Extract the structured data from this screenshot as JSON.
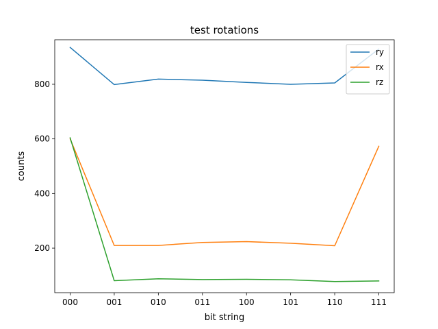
{
  "chart_data": {
    "type": "line",
    "title": "test rotations",
    "xlabel": "bit string",
    "ylabel": "counts",
    "categories": [
      "000",
      "001",
      "010",
      "011",
      "100",
      "101",
      "110",
      "111"
    ],
    "ylim": [
      37,
      963
    ],
    "yticks": [
      200,
      400,
      600,
      800
    ],
    "grid": false,
    "legend": "top-right",
    "series": [
      {
        "name": "ry",
        "color": "#1f77b4",
        "values": [
          935,
          799,
          819,
          815,
          807,
          800,
          805,
          929
        ]
      },
      {
        "name": "rx",
        "color": "#ff7f0e",
        "values": [
          600,
          210,
          210,
          221,
          224,
          218,
          209,
          573
        ]
      },
      {
        "name": "rz",
        "color": "#2ca02c",
        "values": [
          604,
          81,
          88,
          85,
          86,
          84,
          78,
          80
        ]
      }
    ]
  }
}
